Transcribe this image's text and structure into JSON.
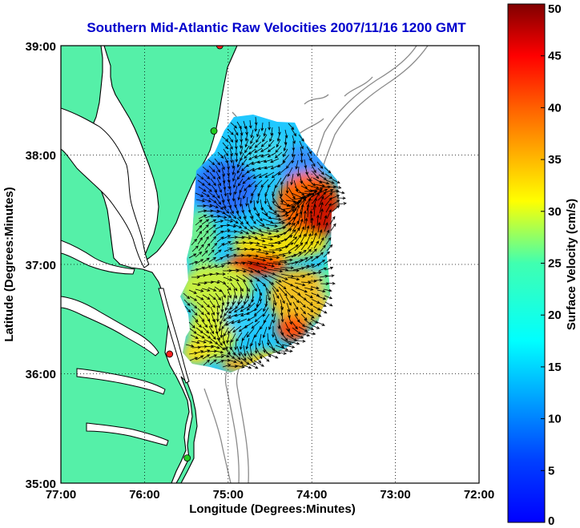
{
  "chart_data": {
    "type": "heatmap",
    "title": "Southern Mid-Atlantic Raw Velocities 2007/11/16 1200 GMT",
    "xlabel": "Longitude (Degrees:Minutes)",
    "ylabel": "Latitude (Degrees:Minutes)",
    "x_ticks": [
      "77:00",
      "76:00",
      "75:00",
      "74:00",
      "73:00",
      "72:00"
    ],
    "y_ticks": [
      "39:00",
      "38:00",
      "37:00",
      "36:00",
      "35:00"
    ],
    "xlim": [
      -77,
      -72
    ],
    "ylim": [
      35,
      39
    ],
    "grid": true,
    "colorbar": {
      "label": "Surface Velocity (cm/s)",
      "range": [
        0,
        50
      ],
      "ticks": [
        "0",
        "5",
        "10",
        "15",
        "20",
        "25",
        "30",
        "35",
        "40",
        "45",
        "50"
      ],
      "colormap": "jet"
    },
    "velocity_field": {
      "longitude_range": [
        -75.55,
        -73.7
      ],
      "latitude_range": [
        35.9,
        38.4
      ],
      "max_speed": 50,
      "high_speed_regions": [
        {
          "lon": -74.25,
          "lat": 37.5,
          "speed": 48
        },
        {
          "lon": -74.55,
          "lat": 36.95,
          "speed": 45
        },
        {
          "lon": -74.45,
          "lat": 36.2,
          "speed": 38
        }
      ],
      "low_speed_regions": [
        {
          "lon": -75.1,
          "lat": 37.6,
          "speed": 6
        },
        {
          "lon": -74.3,
          "lat": 37.85,
          "speed": 8
        },
        {
          "lon": -74.95,
          "lat": 36.5,
          "speed": 10
        }
      ]
    },
    "stations": [
      {
        "lon": -75.1,
        "lat": 39.0,
        "color": "#ff2020"
      },
      {
        "lon": -75.17,
        "lat": 38.22,
        "color": "#22cc22"
      },
      {
        "lon": -75.7,
        "lat": 36.18,
        "color": "#ff2020"
      },
      {
        "lon": -75.49,
        "lat": 35.23,
        "color": "#22cc22"
      }
    ]
  },
  "colors": {
    "land": "#55f0a8",
    "coast": "#000000",
    "bathymetry": "#888888",
    "title": "#0000cc",
    "station_red": "#ff2020",
    "station_green": "#22cc22"
  }
}
